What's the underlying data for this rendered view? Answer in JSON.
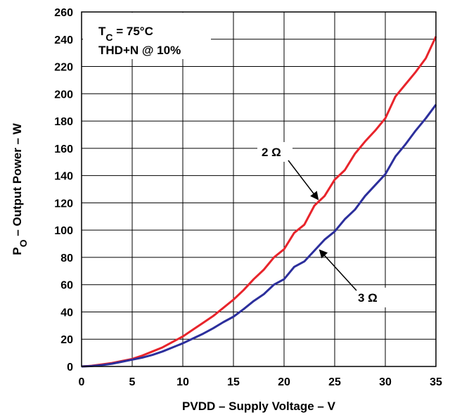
{
  "chart_data": {
    "type": "line",
    "xlabel": "PVDD – Supply Voltage – V",
    "ylabel_main": "P",
    "ylabel_sub": "O",
    "ylabel_rest": " – Output Power – W",
    "xlim": [
      0,
      35
    ],
    "ylim": [
      0,
      260
    ],
    "xticks": [
      0,
      5,
      10,
      15,
      20,
      25,
      30,
      35
    ],
    "yticks": [
      0,
      20,
      40,
      60,
      80,
      100,
      120,
      140,
      160,
      180,
      200,
      220,
      240,
      260
    ],
    "grid": true,
    "annotations": {
      "tc_main": "T",
      "tc_sub": "C",
      "tc_rest": " = 75°C",
      "thd": "THD+N @ 10%"
    },
    "series": [
      {
        "name": "2 Ω",
        "color": "#e8242b",
        "x": [
          0,
          1,
          2,
          3,
          4,
          5,
          6,
          7,
          8,
          9,
          10,
          11,
          12,
          13,
          14,
          15,
          16,
          17,
          18,
          19,
          20,
          21,
          22,
          23,
          24,
          25,
          26,
          27,
          28,
          29,
          30,
          31,
          32,
          33,
          34,
          35
        ],
        "y": [
          0,
          0.5,
          1.5,
          2.5,
          4,
          5.5,
          8,
          11,
          14,
          18,
          22,
          27,
          32,
          37,
          43,
          49,
          56,
          64,
          71,
          80,
          86,
          98,
          104,
          118,
          125,
          137,
          144,
          156,
          165,
          173,
          182,
          198,
          207,
          216,
          226,
          242
        ]
      },
      {
        "name": "3 Ω",
        "color": "#2c2f9c",
        "x": [
          0,
          1,
          2,
          3,
          4,
          5,
          6,
          7,
          8,
          9,
          10,
          11,
          12,
          13,
          14,
          15,
          16,
          17,
          18,
          19,
          20,
          21,
          22,
          23,
          24,
          25,
          26,
          27,
          28,
          29,
          30,
          31,
          32,
          33,
          34,
          35
        ],
        "y": [
          0,
          0.3,
          1,
          2,
          3.5,
          5,
          6.5,
          8.5,
          11,
          14,
          17,
          20.5,
          24,
          28,
          32.5,
          36.5,
          42,
          48,
          53,
          60,
          64,
          73,
          77,
          85,
          93,
          99,
          108,
          115,
          125,
          133,
          141,
          154,
          163,
          173,
          182,
          192
        ]
      }
    ]
  }
}
